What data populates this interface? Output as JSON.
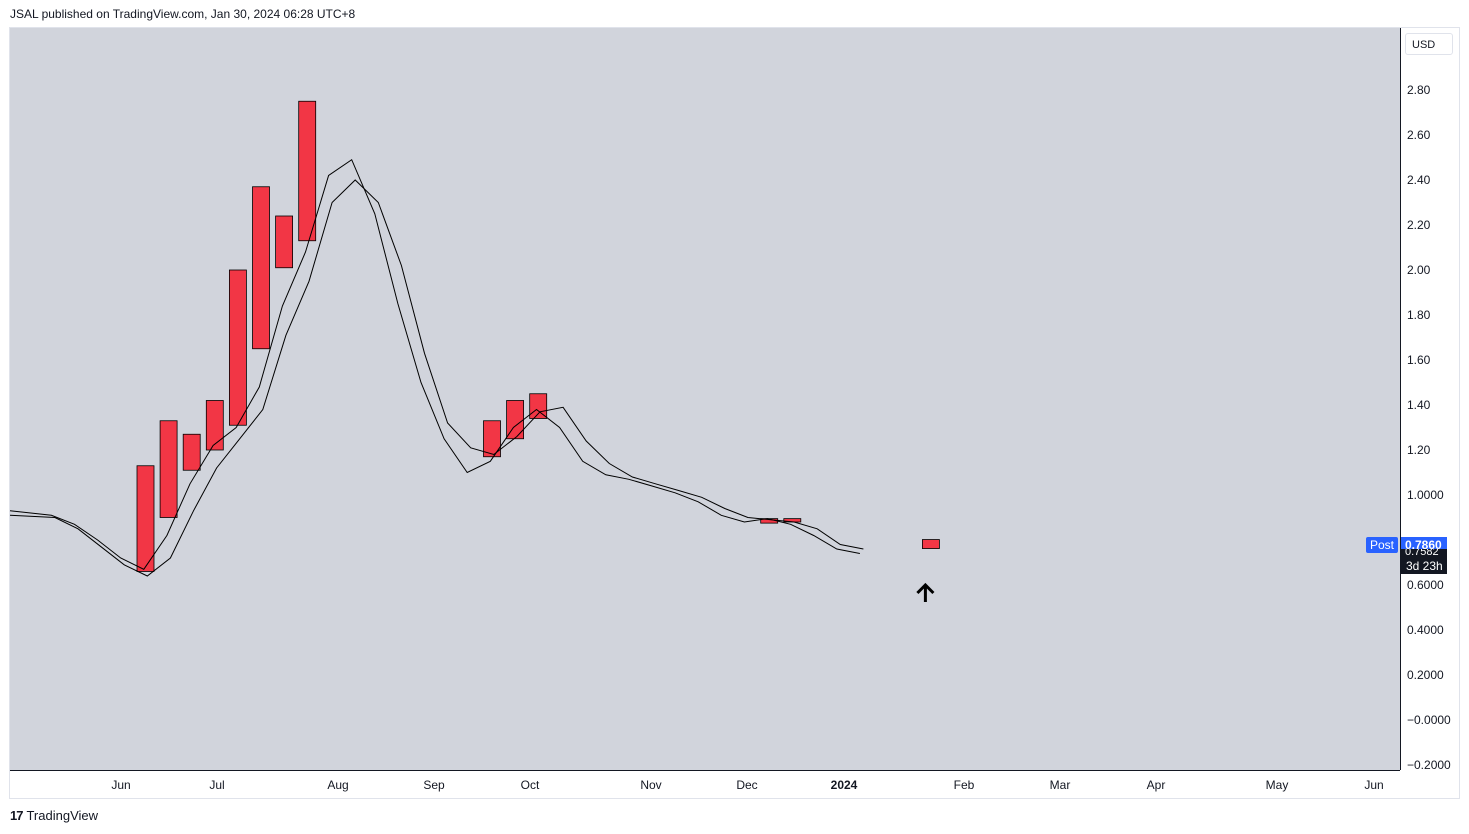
{
  "header": {
    "text": "JSAL published on TradingView.com, Jan 30, 2024 06:28 UTC+8"
  },
  "currency": "USD",
  "footer": {
    "logo": "17",
    "brand": "TradingView"
  },
  "price_label": {
    "tag": "Post",
    "value": "0.7860",
    "hidden_value": "0.7582",
    "countdown": "3d 23h"
  },
  "colors": {
    "candle": "#f23645",
    "plot_bg": "#d1d4dc",
    "ma_line": "#000000",
    "badge": "#2962ff"
  },
  "chart_data": {
    "type": "bar",
    "title": "",
    "xlabel": "",
    "ylabel": "",
    "ylim": [
      -0.2,
      3.1
    ],
    "grid": false,
    "y_ticks": [
      "2.80",
      "2.60",
      "2.40",
      "2.20",
      "2.00",
      "1.80",
      "1.60",
      "1.40",
      "1.20",
      "1.0000",
      "0.6000",
      "0.4000",
      "0.2000",
      "−0.0000",
      "−0.2000"
    ],
    "x_ticks": [
      {
        "label": "Jun",
        "bold": false
      },
      {
        "label": "Jul",
        "bold": false
      },
      {
        "label": "Aug",
        "bold": false
      },
      {
        "label": "Sep",
        "bold": false
      },
      {
        "label": "Oct",
        "bold": false
      },
      {
        "label": "Nov",
        "bold": false
      },
      {
        "label": "Dec",
        "bold": false
      },
      {
        "label": "2024",
        "bold": true
      },
      {
        "label": "Feb",
        "bold": false
      },
      {
        "label": "Mar",
        "bold": false
      },
      {
        "label": "Apr",
        "bold": false
      },
      {
        "label": "May",
        "bold": false
      },
      {
        "label": "Jun",
        "bold": false
      }
    ],
    "candles": [
      {
        "week": "Jun 5",
        "low": 0.66,
        "high": 1.13
      },
      {
        "week": "Jun 12",
        "low": 0.9,
        "high": 1.33
      },
      {
        "week": "Jun 19",
        "low": 1.11,
        "high": 1.27
      },
      {
        "week": "Jun 26",
        "low": 1.2,
        "high": 1.42
      },
      {
        "week": "Jul 3",
        "low": 1.31,
        "high": 2.0
      },
      {
        "week": "Jul 10",
        "low": 1.65,
        "high": 2.37
      },
      {
        "week": "Jul 17",
        "low": 2.01,
        "high": 2.24
      },
      {
        "week": "Jul 24",
        "low": 2.13,
        "high": 2.75
      },
      {
        "week": "Sep 18",
        "low": 1.17,
        "high": 1.33
      },
      {
        "week": "Sep 25",
        "low": 1.25,
        "high": 1.42
      },
      {
        "week": "Oct 2",
        "low": 1.34,
        "high": 1.45
      },
      {
        "week": "Dec 11",
        "low": 0.875,
        "high": 0.895
      },
      {
        "week": "Dec 18",
        "low": 0.88,
        "high": 0.895
      },
      {
        "week": "Jan 29",
        "low": 0.762,
        "high": 0.802
      }
    ],
    "series": [
      {
        "values": [
          0.93,
          0.91,
          0.87,
          0.8,
          0.72,
          0.67,
          0.82,
          1.05,
          1.22,
          1.3,
          1.48,
          1.84,
          2.08,
          2.42,
          2.49,
          2.25,
          1.85,
          1.5,
          1.25,
          1.1,
          1.15,
          1.3,
          1.38,
          1.3,
          1.15,
          1.09,
          1.07,
          1.04,
          1.01,
          0.97,
          0.91,
          0.88,
          0.895,
          0.87,
          0.82,
          0.76,
          0.74
        ]
      },
      {
        "values": [
          0.91,
          0.9,
          0.85,
          0.77,
          0.69,
          0.64,
          0.72,
          0.93,
          1.12,
          1.25,
          1.38,
          1.71,
          1.95,
          2.3,
          2.4,
          2.3,
          2.02,
          1.63,
          1.32,
          1.21,
          1.18,
          1.26,
          1.37,
          1.39,
          1.24,
          1.14,
          1.08,
          1.05,
          1.02,
          0.99,
          0.94,
          0.9,
          0.89,
          0.88,
          0.85,
          0.78,
          0.76
        ]
      }
    ]
  }
}
